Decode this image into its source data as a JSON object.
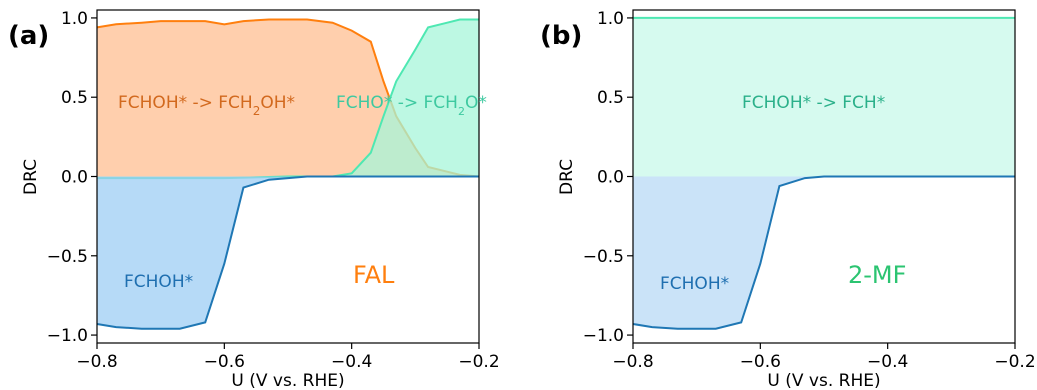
{
  "chart_data": [
    {
      "type": "area",
      "panel_label": "(a)",
      "xlabel": "U (V vs. RHE)",
      "ylabel": "DRC",
      "xlim": [
        -0.8,
        -0.2
      ],
      "ylim": [
        -1.05,
        1.05
      ],
      "xticks": [
        -0.8,
        -0.6,
        -0.4,
        -0.2
      ],
      "xtick_labels": [
        "−0.8",
        "−0.6",
        "−0.4",
        "−0.2"
      ],
      "yticks": [
        -1.0,
        -0.5,
        0.0,
        0.5,
        1.0
      ],
      "ytick_labels": [
        "−1.0",
        "−0.5",
        "0.0",
        "0.5",
        "1.0"
      ],
      "inset_label": {
        "text": "FAL",
        "color": "#ff7f0e"
      },
      "series": [
        {
          "name": "FCHOH* -> FCH2OH*",
          "color": "#ff7f0e",
          "fill": "#ffbf91",
          "x": [
            -0.8,
            -0.77,
            -0.73,
            -0.7,
            -0.67,
            -0.63,
            -0.6,
            -0.57,
            -0.53,
            -0.5,
            -0.47,
            -0.43,
            -0.4,
            -0.37,
            -0.35,
            -0.33,
            -0.3,
            -0.28,
            -0.25,
            -0.23,
            -0.2
          ],
          "y": [
            0.94,
            0.96,
            0.97,
            0.98,
            0.98,
            0.98,
            0.96,
            0.98,
            0.99,
            0.99,
            0.99,
            0.97,
            0.92,
            0.85,
            0.6,
            0.38,
            0.18,
            0.06,
            0.03,
            0.01,
            0.0
          ]
        },
        {
          "name": "FCHO* -> FCH2O*",
          "color": "#4ee8b2",
          "fill": "#a7f5d9",
          "x": [
            -0.8,
            -0.6,
            -0.5,
            -0.43,
            -0.4,
            -0.37,
            -0.35,
            -0.33,
            -0.3,
            -0.28,
            -0.25,
            -0.23,
            -0.2
          ],
          "y": [
            -0.01,
            -0.01,
            0.0,
            0.0,
            0.02,
            0.15,
            0.38,
            0.6,
            0.8,
            0.94,
            0.97,
            0.99,
            0.99
          ]
        },
        {
          "name": "FCHOH*",
          "color": "#1f77b4",
          "fill": "#9ecdf4",
          "x": [
            -0.8,
            -0.77,
            -0.73,
            -0.7,
            -0.67,
            -0.63,
            -0.6,
            -0.57,
            -0.53,
            -0.5,
            -0.47,
            -0.43,
            -0.4,
            -0.2
          ],
          "y": [
            -0.93,
            -0.95,
            -0.96,
            -0.96,
            -0.96,
            -0.92,
            -0.55,
            -0.07,
            -0.02,
            -0.01,
            0.0,
            0.0,
            0.0,
            0.0
          ]
        }
      ],
      "annotations": [
        {
          "text": "FCHOH* -> FCH",
          "sub": "2",
          "tail": "OH*",
          "color": "#d2691e"
        },
        {
          "text": "FCHO* -> FCH",
          "sub": "2",
          "tail": "O*",
          "color": "#3ec9a0"
        },
        {
          "text": "FCHOH*",
          "sub": "",
          "tail": "",
          "color": "#1f6fb0"
        }
      ]
    },
    {
      "type": "area",
      "panel_label": "(b)",
      "xlabel": "U (V vs. RHE)",
      "ylabel": "DRC",
      "xlim": [
        -0.8,
        -0.2
      ],
      "ylim": [
        -1.05,
        1.05
      ],
      "xticks": [
        -0.8,
        -0.6,
        -0.4,
        -0.2
      ],
      "xtick_labels": [
        "−0.8",
        "−0.6",
        "−0.4",
        "−0.2"
      ],
      "yticks": [
        -1.0,
        -0.5,
        0.0,
        0.5,
        1.0
      ],
      "ytick_labels": [
        "−1.0",
        "−0.5",
        "0.0",
        "0.5",
        "1.0"
      ],
      "inset_label": {
        "text": "2-MF",
        "color": "#2bc471"
      },
      "series": [
        {
          "name": "FCHOH* -> FCH*",
          "color": "#4ee8b2",
          "fill": "#c8f8e9",
          "x": [
            -0.8,
            -0.2
          ],
          "y": [
            1.0,
            1.0
          ]
        },
        {
          "name": "FCHOH*",
          "color": "#1f77b4",
          "fill": "#b8d9f6",
          "x": [
            -0.8,
            -0.77,
            -0.73,
            -0.7,
            -0.67,
            -0.63,
            -0.6,
            -0.57,
            -0.53,
            -0.5,
            -0.47,
            -0.43,
            -0.4,
            -0.2
          ],
          "y": [
            -0.93,
            -0.95,
            -0.96,
            -0.96,
            -0.96,
            -0.92,
            -0.55,
            -0.06,
            -0.01,
            0.0,
            0.0,
            0.0,
            0.0,
            0.0
          ]
        }
      ],
      "annotations": [
        {
          "text": "FCHOH* -> FCH*",
          "sub": "",
          "tail": "",
          "color": "#2bb08a"
        },
        {
          "text": "FCHOH*",
          "sub": "",
          "tail": "",
          "color": "#1f6fb0"
        }
      ]
    }
  ]
}
